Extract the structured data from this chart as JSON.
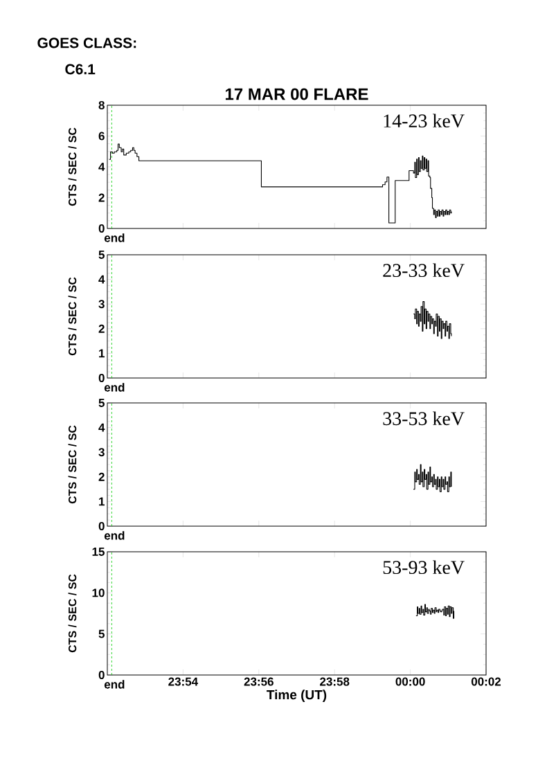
{
  "chart_data": [
    {
      "type": "step",
      "title": "17 MAR 00 FLARE",
      "annotations": [
        "GOES CLASS:",
        "C6.1"
      ],
      "ylabel": "CTS / SEC / SC",
      "xlim": [
        "2000-03-17T23:52",
        "2000-03-18T00:02"
      ],
      "ylim": [
        0,
        8
      ],
      "yticks": [
        0,
        2,
        4,
        6,
        8
      ],
      "xticks": [
        {
          "value": "2000-03-17T23:54",
          "label": null
        },
        {
          "value": "2000-03-17T23:56",
          "label": null
        },
        {
          "value": "2000-03-17T23:58",
          "label": null
        },
        {
          "value": "2000-03-18T00:00",
          "label": null
        },
        {
          "value": "2000-03-18T00:02",
          "label": null
        }
      ],
      "tick_labels": "y",
      "ref_lines": [
        {
          "axis": "x",
          "value": "2000-03-17T23:52:07",
          "label": "end",
          "color": "#00cc00",
          "line_style": "dashed"
        }
      ],
      "series": [
        {
          "name": "14-23 keV",
          "color": "#000000",
          "x": [
            "2000-03-17T23:52:03",
            "2000-03-17T23:52:05",
            "2000-03-17T23:52:08",
            "2000-03-17T23:52:11",
            "2000-03-17T23:52:15",
            "2000-03-17T23:52:17",
            "2000-03-17T23:52:19",
            "2000-03-17T23:52:22",
            "2000-03-17T23:52:24",
            "2000-03-17T23:52:26",
            "2000-03-17T23:52:30",
            "2000-03-17T23:52:34",
            "2000-03-17T23:52:37",
            "2000-03-17T23:52:40",
            "2000-03-17T23:52:42",
            "2000-03-17T23:52:44",
            "2000-03-17T23:52:47",
            "2000-03-17T23:52:50",
            "2000-03-17T23:56:04",
            "2000-03-17T23:59:16",
            "2000-03-17T23:59:20",
            "2000-03-17T23:59:23",
            "2000-03-17T23:59:26",
            "2000-03-17T23:59:36",
            "2000-03-17T23:59:58",
            "2000-03-18T00:00:05",
            "2000-03-18T00:00:07",
            "2000-03-18T00:00:08",
            "2000-03-18T00:00:10",
            "2000-03-18T00:00:11",
            "2000-03-18T00:00:13",
            "2000-03-18T00:00:14",
            "2000-03-18T00:00:16",
            "2000-03-18T00:00:17",
            "2000-03-18T00:00:19",
            "2000-03-18T00:00:20",
            "2000-03-18T00:00:22",
            "2000-03-18T00:00:23",
            "2000-03-18T00:00:25",
            "2000-03-18T00:00:26",
            "2000-03-18T00:00:28",
            "2000-03-18T00:00:29",
            "2000-03-18T00:00:31",
            "2000-03-18T00:00:32",
            "2000-03-18T00:00:34",
            "2000-03-18T00:00:35",
            "2000-03-18T00:00:37",
            "2000-03-18T00:00:38",
            "2000-03-18T00:00:40",
            "2000-03-18T00:00:41",
            "2000-03-18T00:00:43",
            "2000-03-18T00:00:44",
            "2000-03-18T00:00:46",
            "2000-03-18T00:00:47",
            "2000-03-18T00:00:49",
            "2000-03-18T00:00:50",
            "2000-03-18T00:00:52",
            "2000-03-18T00:00:53",
            "2000-03-18T00:00:55",
            "2000-03-18T00:00:56",
            "2000-03-18T00:00:58",
            "2000-03-18T00:00:59",
            "2000-03-18T00:01:01",
            "2000-03-18T00:01:02",
            "2000-03-18T00:01:04",
            "2000-03-18T00:01:05"
          ],
          "values": [
            4.48,
            4.98,
            4.89,
            4.98,
            5.07,
            5.48,
            5.25,
            4.98,
            5.16,
            4.77,
            4.89,
            4.98,
            5.07,
            5.25,
            5.07,
            4.89,
            4.66,
            4.39,
            2.7,
            2.84,
            3.02,
            3.34,
            0.36,
            3.11,
            3.75,
            3.6,
            4.3,
            3.3,
            4.5,
            3.5,
            4.6,
            3.7,
            4.4,
            3.9,
            4.7,
            3.8,
            4.6,
            3.9,
            4.5,
            3.7,
            4.4,
            3.4,
            3.3,
            2.6,
            2.0,
            1.3,
            0.9,
            1.2,
            0.7,
            1.1,
            0.8,
            1.2,
            0.8,
            1.1,
            0.9,
            1.2,
            0.8,
            1.1,
            0.9,
            1.2,
            0.9,
            1.1,
            0.9,
            1.2,
            1.0,
            1.1
          ]
        }
      ]
    },
    {
      "type": "step",
      "ylabel": "CTS / SEC / SC",
      "xlim": [
        "2000-03-17T23:52",
        "2000-03-18T00:02"
      ],
      "ylim": [
        0,
        5
      ],
      "yticks": [
        0,
        1,
        2,
        3,
        4,
        5
      ],
      "xticks": [
        {
          "value": "2000-03-17T23:54",
          "label": null
        },
        {
          "value": "2000-03-17T23:56",
          "label": null
        },
        {
          "value": "2000-03-17T23:58",
          "label": null
        },
        {
          "value": "2000-03-18T00:00",
          "label": null
        },
        {
          "value": "2000-03-18T00:02",
          "label": null
        }
      ],
      "tick_labels": "y",
      "ref_lines": [
        {
          "axis": "x",
          "value": "2000-03-17T23:52:07",
          "label": "end",
          "color": "#00cc00",
          "line_style": "dashed"
        }
      ],
      "series": [
        {
          "name": "23-33 keV",
          "color": "#000000",
          "x": [
            "2000-03-18T00:00:05",
            "2000-03-18T00:00:07",
            "2000-03-18T00:00:08",
            "2000-03-18T00:00:10",
            "2000-03-18T00:00:11",
            "2000-03-18T00:00:13",
            "2000-03-18T00:00:14",
            "2000-03-18T00:00:16",
            "2000-03-18T00:00:17",
            "2000-03-18T00:00:19",
            "2000-03-18T00:00:20",
            "2000-03-18T00:00:22",
            "2000-03-18T00:00:23",
            "2000-03-18T00:00:25",
            "2000-03-18T00:00:26",
            "2000-03-18T00:00:28",
            "2000-03-18T00:00:29",
            "2000-03-18T00:00:31",
            "2000-03-18T00:00:32",
            "2000-03-18T00:00:34",
            "2000-03-18T00:00:35",
            "2000-03-18T00:00:37",
            "2000-03-18T00:00:38",
            "2000-03-18T00:00:40",
            "2000-03-18T00:00:41",
            "2000-03-18T00:00:43",
            "2000-03-18T00:00:44",
            "2000-03-18T00:00:46",
            "2000-03-18T00:00:47",
            "2000-03-18T00:00:49",
            "2000-03-18T00:00:50",
            "2000-03-18T00:00:52",
            "2000-03-18T00:00:53",
            "2000-03-18T00:00:55",
            "2000-03-18T00:00:56",
            "2000-03-18T00:00:58",
            "2000-03-18T00:00:59",
            "2000-03-18T00:01:01",
            "2000-03-18T00:01:02",
            "2000-03-18T00:01:04",
            "2000-03-18T00:01:05"
          ],
          "values": [
            2.6,
            2.4,
            2.8,
            2.2,
            2.7,
            2.1,
            2.6,
            2.3,
            2.9,
            1.9,
            3.1,
            2.2,
            2.8,
            2.0,
            2.7,
            2.3,
            2.6,
            2.0,
            2.5,
            2.2,
            2.4,
            1.8,
            2.3,
            2.1,
            2.6,
            1.7,
            2.5,
            1.9,
            2.4,
            1.6,
            2.3,
            2.0,
            2.2,
            1.7,
            2.3,
            1.9,
            2.1,
            1.6,
            2.2,
            1.8,
            1.7
          ]
        }
      ]
    },
    {
      "type": "step",
      "ylabel": "CTS / SEC / SC",
      "xlim": [
        "2000-03-17T23:52",
        "2000-03-18T00:02"
      ],
      "ylim": [
        0,
        5
      ],
      "yticks": [
        0,
        1,
        2,
        3,
        4,
        5
      ],
      "xticks": [
        {
          "value": "2000-03-17T23:54",
          "label": null
        },
        {
          "value": "2000-03-17T23:56",
          "label": null
        },
        {
          "value": "2000-03-17T23:58",
          "label": null
        },
        {
          "value": "2000-03-18T00:00",
          "label": null
        },
        {
          "value": "2000-03-18T00:02",
          "label": null
        }
      ],
      "tick_labels": "y",
      "ref_lines": [
        {
          "axis": "x",
          "value": "2000-03-17T23:52:07",
          "label": "end",
          "color": "#00cc00",
          "line_style": "dashed"
        }
      ],
      "series": [
        {
          "name": "33-53 keV",
          "color": "#000000",
          "x": [
            "2000-03-18T00:00:05",
            "2000-03-18T00:00:07",
            "2000-03-18T00:00:08",
            "2000-03-18T00:00:10",
            "2000-03-18T00:00:11",
            "2000-03-18T00:00:13",
            "2000-03-18T00:00:14",
            "2000-03-18T00:00:16",
            "2000-03-18T00:00:17",
            "2000-03-18T00:00:19",
            "2000-03-18T00:00:20",
            "2000-03-18T00:00:22",
            "2000-03-18T00:00:23",
            "2000-03-18T00:00:25",
            "2000-03-18T00:00:26",
            "2000-03-18T00:00:28",
            "2000-03-18T00:00:29",
            "2000-03-18T00:00:31",
            "2000-03-18T00:00:32",
            "2000-03-18T00:00:34",
            "2000-03-18T00:00:35",
            "2000-03-18T00:00:37",
            "2000-03-18T00:00:38",
            "2000-03-18T00:00:40",
            "2000-03-18T00:00:41",
            "2000-03-18T00:00:43",
            "2000-03-18T00:00:44",
            "2000-03-18T00:00:46",
            "2000-03-18T00:00:47",
            "2000-03-18T00:00:49",
            "2000-03-18T00:00:50",
            "2000-03-18T00:00:52",
            "2000-03-18T00:00:53",
            "2000-03-18T00:00:55",
            "2000-03-18T00:00:56",
            "2000-03-18T00:00:58",
            "2000-03-18T00:00:59",
            "2000-03-18T00:01:01",
            "2000-03-18T00:01:02",
            "2000-03-18T00:01:04",
            "2000-03-18T00:01:05"
          ],
          "values": [
            1.5,
            2.2,
            1.8,
            2.3,
            1.9,
            2.1,
            1.7,
            2.5,
            1.8,
            2.2,
            1.6,
            2.3,
            1.9,
            2.1,
            1.5,
            2.2,
            1.7,
            2.4,
            1.8,
            2.0,
            1.6,
            2.1,
            1.7,
            1.9,
            1.5,
            2.0,
            1.6,
            1.9,
            1.4,
            2.0,
            1.6,
            1.9,
            1.5,
            2.0,
            1.7,
            1.8,
            1.4,
            2.0,
            1.6,
            2.2,
            1.6
          ]
        }
      ]
    },
    {
      "type": "step",
      "ylabel": "CTS / SEC / SC",
      "xlabel": "Time (UT)",
      "xlim": [
        "2000-03-17T23:52",
        "2000-03-18T00:02"
      ],
      "ylim": [
        0,
        15
      ],
      "yticks": [
        0,
        5,
        10,
        15
      ],
      "xticks": [
        {
          "value": "2000-03-17T23:54",
          "label": "23:54"
        },
        {
          "value": "2000-03-17T23:56",
          "label": "23:56"
        },
        {
          "value": "2000-03-17T23:58",
          "label": "23:58"
        },
        {
          "value": "2000-03-18T00:00",
          "label": "00:00"
        },
        {
          "value": "2000-03-18T00:02",
          "label": "00:02"
        }
      ],
      "ref_lines": [
        {
          "axis": "x",
          "value": "2000-03-17T23:52:07",
          "label": "end",
          "color": "#00cc00",
          "line_style": "dashed"
        }
      ],
      "series": [
        {
          "name": "53-93 keV",
          "color": "#000000",
          "x": [
            "2000-03-18T00:00:09",
            "2000-03-18T00:00:11",
            "2000-03-18T00:00:12",
            "2000-03-18T00:00:14",
            "2000-03-18T00:00:15",
            "2000-03-18T00:00:17",
            "2000-03-18T00:00:18",
            "2000-03-18T00:00:20",
            "2000-03-18T00:00:21",
            "2000-03-18T00:00:23",
            "2000-03-18T00:00:24",
            "2000-03-18T00:00:26",
            "2000-03-18T00:00:27",
            "2000-03-18T00:00:29",
            "2000-03-18T00:00:30",
            "2000-03-18T00:00:32",
            "2000-03-18T00:00:33",
            "2000-03-18T00:00:35",
            "2000-03-18T00:00:36",
            "2000-03-18T00:00:38",
            "2000-03-18T00:00:39",
            "2000-03-18T00:00:41",
            "2000-03-18T00:00:42",
            "2000-03-18T00:00:44",
            "2000-03-18T00:00:45",
            "2000-03-18T00:00:47",
            "2000-03-18T00:00:48",
            "2000-03-18T00:00:50",
            "2000-03-18T00:00:51",
            "2000-03-18T00:00:53",
            "2000-03-18T00:00:54",
            "2000-03-18T00:00:56",
            "2000-03-18T00:00:57",
            "2000-03-18T00:00:59",
            "2000-03-18T00:01:00",
            "2000-03-18T00:01:02",
            "2000-03-18T00:01:03",
            "2000-03-18T00:01:05",
            "2000-03-18T00:01:06",
            "2000-03-18T00:01:08",
            "2000-03-18T00:01:09"
          ],
          "values": [
            7.2,
            8.3,
            7.5,
            8.1,
            7.4,
            8.4,
            7.6,
            8.0,
            7.3,
            8.6,
            7.7,
            8.2,
            7.5,
            8.0,
            7.8,
            7.4,
            8.1,
            7.6,
            7.9,
            7.5,
            8.2,
            7.7,
            7.9,
            7.6,
            8.0,
            7.8,
            7.7,
            7.9,
            8.0,
            7.3,
            8.3,
            7.2,
            8.1,
            7.4,
            8.4,
            7.1,
            8.3,
            7.5,
            8.2,
            6.9,
            7.8
          ]
        }
      ]
    }
  ]
}
